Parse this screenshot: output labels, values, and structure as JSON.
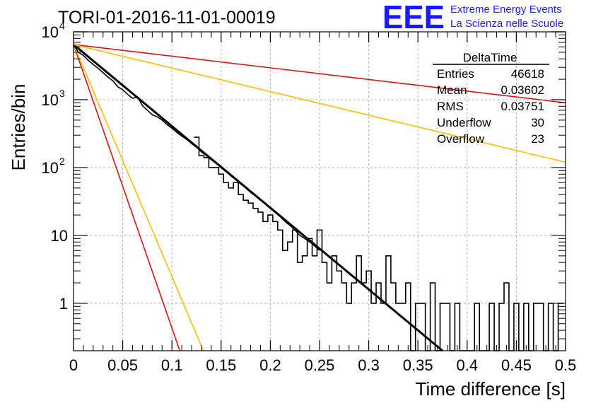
{
  "chart_data": {
    "type": "histogram",
    "title": "TORI-01-2016-11-01-00019",
    "xlabel": "Time difference [s]",
    "ylabel": "Entries/bin",
    "xlim": [
      0,
      0.5
    ],
    "ylim": [
      0.2,
      10000
    ],
    "yscale": "log",
    "grid": true,
    "x_ticks": [
      "0",
      "0.05",
      "0.1",
      "0.15",
      "0.2",
      "0.25",
      "0.3",
      "0.35",
      "0.4",
      "0.45",
      "0.5"
    ],
    "y_ticks": [
      {
        "value": 1,
        "label": "1"
      },
      {
        "value": 10,
        "label": "10"
      },
      {
        "value": 100,
        "label": "10",
        "exp": "2"
      },
      {
        "value": 1000,
        "label": "10",
        "exp": "3"
      },
      {
        "value": 10000,
        "label": "10",
        "exp": "4"
      }
    ],
    "stats_box": {
      "title": "DeltaTime",
      "rows": [
        {
          "label": "Entries",
          "value": "46618"
        },
        {
          "label": "Mean",
          "value": "0.03602"
        },
        {
          "label": "RMS",
          "value": "0.03751"
        },
        {
          "label": "Underflow",
          "value": "30"
        },
        {
          "label": "Overflow",
          "value": "23"
        }
      ]
    },
    "logo": {
      "text": "EEE",
      "line1": "Extreme Energy Events",
      "line2": "La Scienza nelle Scuole",
      "color": "#1a1aff"
    },
    "histogram_color": "#000000",
    "histogram_step": [
      [
        0.005,
        5000
      ],
      [
        0.01,
        4500
      ],
      [
        0.015,
        3800
      ],
      [
        0.02,
        3300
      ],
      [
        0.025,
        2900
      ],
      [
        0.03,
        2500
      ],
      [
        0.035,
        2150
      ],
      [
        0.04,
        1900
      ],
      [
        0.045,
        1550
      ],
      [
        0.05,
        1400
      ],
      [
        0.055,
        1200
      ],
      [
        0.06,
        1050
      ],
      [
        0.065,
        1100
      ],
      [
        0.07,
        820
      ],
      [
        0.075,
        700
      ],
      [
        0.08,
        600
      ],
      [
        0.085,
        560
      ],
      [
        0.09,
        500
      ],
      [
        0.095,
        430
      ],
      [
        0.1,
        380
      ],
      [
        0.105,
        330
      ],
      [
        0.11,
        290
      ],
      [
        0.115,
        260
      ],
      [
        0.12,
        225
      ],
      [
        0.125,
        200
      ],
      [
        0.13,
        170
      ],
      [
        0.135,
        150
      ],
      [
        0.14,
        130
      ],
      [
        0.145,
        115
      ],
      [
        0.15,
        100
      ],
      [
        0.155,
        88
      ],
      [
        0.16,
        75
      ],
      [
        0.165,
        66
      ],
      [
        0.17,
        57
      ],
      [
        0.175,
        50
      ],
      [
        0.18,
        43
      ],
      [
        0.185,
        38
      ],
      [
        0.19,
        33
      ],
      [
        0.195,
        29
      ],
      [
        0.2,
        25
      ],
      [
        0.205,
        22
      ],
      [
        0.21,
        19
      ],
      [
        0.215,
        16
      ],
      [
        0.22,
        14
      ],
      [
        0.225,
        12
      ],
      [
        0.23,
        10
      ],
      [
        0.235,
        9
      ],
      [
        0.24,
        8
      ],
      [
        0.245,
        7
      ],
      [
        0.25,
        6
      ]
    ],
    "histogram_bins": [
      {
        "x": 0.125,
        "y": 280
      },
      {
        "x": 0.13,
        "y": 150
      },
      {
        "x": 0.135,
        "y": 140
      },
      {
        "x": 0.14,
        "y": 100
      },
      {
        "x": 0.145,
        "y": 100
      },
      {
        "x": 0.15,
        "y": 80
      },
      {
        "x": 0.155,
        "y": 60
      },
      {
        "x": 0.16,
        "y": 50
      },
      {
        "x": 0.165,
        "y": 60
      },
      {
        "x": 0.17,
        "y": 40
      },
      {
        "x": 0.175,
        "y": 33
      },
      {
        "x": 0.18,
        "y": 30
      },
      {
        "x": 0.185,
        "y": 25
      },
      {
        "x": 0.19,
        "y": 22
      },
      {
        "x": 0.195,
        "y": 16
      },
      {
        "x": 0.2,
        "y": 20
      },
      {
        "x": 0.205,
        "y": 16
      },
      {
        "x": 0.21,
        "y": 12
      },
      {
        "x": 0.215,
        "y": 6
      },
      {
        "x": 0.22,
        "y": 8
      },
      {
        "x": 0.225,
        "y": 12
      },
      {
        "x": 0.23,
        "y": 4
      },
      {
        "x": 0.235,
        "y": 5
      },
      {
        "x": 0.24,
        "y": 9
      },
      {
        "x": 0.245,
        "y": 5
      },
      {
        "x": 0.25,
        "y": 12
      },
      {
        "x": 0.255,
        "y": 4
      },
      {
        "x": 0.26,
        "y": 2
      },
      {
        "x": 0.265,
        "y": 5
      },
      {
        "x": 0.27,
        "y": 3
      },
      {
        "x": 0.275,
        "y": 2
      },
      {
        "x": 0.28,
        "y": 1
      },
      {
        "x": 0.285,
        "y": 2
      },
      {
        "x": 0.29,
        "y": 5
      },
      {
        "x": 0.295,
        "y": 2
      },
      {
        "x": 0.3,
        "y": 3
      },
      {
        "x": 0.305,
        "y": 1
      },
      {
        "x": 0.31,
        "y": 2
      },
      {
        "x": 0.315,
        "y": 1
      },
      {
        "x": 0.32,
        "y": 5
      },
      {
        "x": 0.325,
        "y": 2
      },
      {
        "x": 0.33,
        "y": 1
      },
      {
        "x": 0.335,
        "y": 1
      },
      {
        "x": 0.34,
        "y": 2
      },
      {
        "x": 0.345,
        "y": 0
      },
      {
        "x": 0.35,
        "y": 1
      },
      {
        "x": 0.355,
        "y": 1
      },
      {
        "x": 0.36,
        "y": 0
      },
      {
        "x": 0.365,
        "y": 2
      },
      {
        "x": 0.37,
        "y": 0
      },
      {
        "x": 0.375,
        "y": 1
      },
      {
        "x": 0.38,
        "y": 1
      },
      {
        "x": 0.385,
        "y": 0
      },
      {
        "x": 0.39,
        "y": 1
      },
      {
        "x": 0.395,
        "y": 0
      },
      {
        "x": 0.4,
        "y": 0
      },
      {
        "x": 0.405,
        "y": 0
      },
      {
        "x": 0.41,
        "y": 1
      },
      {
        "x": 0.415,
        "y": 0
      },
      {
        "x": 0.42,
        "y": 0
      },
      {
        "x": 0.425,
        "y": 1
      },
      {
        "x": 0.43,
        "y": 0
      },
      {
        "x": 0.435,
        "y": 1
      },
      {
        "x": 0.44,
        "y": 2
      },
      {
        "x": 0.445,
        "y": 0
      },
      {
        "x": 0.45,
        "y": 1
      },
      {
        "x": 0.455,
        "y": 0
      },
      {
        "x": 0.46,
        "y": 1
      },
      {
        "x": 0.465,
        "y": 0
      },
      {
        "x": 0.47,
        "y": 1
      },
      {
        "x": 0.475,
        "y": 1
      },
      {
        "x": 0.48,
        "y": 0
      },
      {
        "x": 0.485,
        "y": 1
      },
      {
        "x": 0.49,
        "y": 0
      },
      {
        "x": 0.495,
        "y": 1
      }
    ],
    "lines": [
      {
        "color": "#000000",
        "width": 3,
        "points": [
          [
            0,
            6500
          ],
          [
            0.375,
            0.2
          ]
        ]
      },
      {
        "color": "#dd1111",
        "width": 1.6,
        "points": [
          [
            0,
            6500
          ],
          [
            0.5,
            900
          ]
        ]
      },
      {
        "color": "#dd1111",
        "width": 1.6,
        "points": [
          [
            0,
            6500
          ],
          [
            0.108,
            0.2
          ]
        ]
      },
      {
        "color": "#ffbb00",
        "width": 1.6,
        "points": [
          [
            0,
            6500
          ],
          [
            0.5,
            120
          ]
        ]
      },
      {
        "color": "#ffbb00",
        "width": 1.6,
        "points": [
          [
            0,
            6500
          ],
          [
            0.132,
            0.2
          ]
        ]
      }
    ]
  }
}
